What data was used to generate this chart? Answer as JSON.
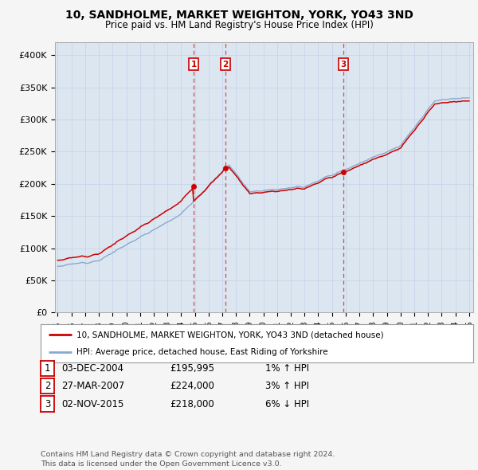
{
  "title": "10, SANDHOLME, MARKET WEIGHTON, YORK, YO43 3ND",
  "subtitle": "Price paid vs. HM Land Registry's House Price Index (HPI)",
  "ylabel_ticks": [
    "£0",
    "£50K",
    "£100K",
    "£150K",
    "£200K",
    "£250K",
    "£300K",
    "£350K",
    "£400K"
  ],
  "ytick_values": [
    0,
    50000,
    100000,
    150000,
    200000,
    250000,
    300000,
    350000,
    400000
  ],
  "ylim": [
    0,
    420000
  ],
  "xlim_start": 1994.8,
  "xlim_end": 2025.3,
  "sale_color": "#cc0000",
  "hpi_color": "#88aacc",
  "plot_bg": "#dce6f1",
  "grid_color": "#c0cce0",
  "transactions": [
    {
      "date_x": 2004.92,
      "price": 195995,
      "label": "1"
    },
    {
      "date_x": 2007.24,
      "price": 224000,
      "label": "2"
    },
    {
      "date_x": 2015.84,
      "price": 218000,
      "label": "3"
    }
  ],
  "table_rows": [
    {
      "num": "1",
      "date": "03-DEC-2004",
      "price": "£195,995",
      "hpi": "1% ↑ HPI"
    },
    {
      "num": "2",
      "date": "27-MAR-2007",
      "price": "£224,000",
      "hpi": "3% ↑ HPI"
    },
    {
      "num": "3",
      "date": "02-NOV-2015",
      "price": "£218,000",
      "hpi": "6% ↓ HPI"
    }
  ],
  "legend_line1": "10, SANDHOLME, MARKET WEIGHTON, YORK, YO43 3ND (detached house)",
  "legend_line2": "HPI: Average price, detached house, East Riding of Yorkshire",
  "footer": "Contains HM Land Registry data © Crown copyright and database right 2024.\nThis data is licensed under the Open Government Licence v3.0."
}
